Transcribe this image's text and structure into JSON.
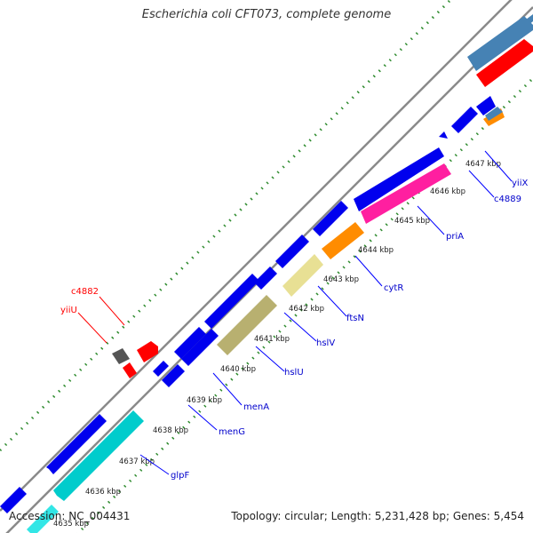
{
  "title": "Escherichia coli CFT073, complete genome",
  "footer": {
    "accession_label": "Accession:",
    "accession": "NC_004431",
    "topology_label": "Topology:",
    "topology": "circular",
    "length_label": "Length:",
    "length": "5,231,428 bp",
    "genes_label": "Genes:",
    "genes": "5,454"
  },
  "colors": {
    "backbone": "#8a8a8a",
    "tick": "#2e8b2e",
    "label_line_forward": "#ff0000",
    "label_line_reverse": "#0000ff"
  },
  "kbp_labels": [
    "4635 kbp",
    "4636 kbp",
    "4637 kbp",
    "4638 kbp",
    "4639 kbp",
    "4640 kbp",
    "4641 kbp",
    "4642 kbp",
    "4643 kbp",
    "4644 kbp",
    "4645 kbp",
    "4646 kbp",
    "4647 kbp"
  ],
  "gene_labels": [
    {
      "name": "c4882",
      "color": "#ff0000"
    },
    {
      "name": "yiiU",
      "color": "#ff0000"
    },
    {
      "name": "glpF",
      "color": "#0000cc"
    },
    {
      "name": "menG",
      "color": "#0000cc"
    },
    {
      "name": "menA",
      "color": "#0000cc"
    },
    {
      "name": "hslU",
      "color": "#0000cc"
    },
    {
      "name": "hslV",
      "color": "#0000cc"
    },
    {
      "name": "ftsN",
      "color": "#0000cc"
    },
    {
      "name": "cytR",
      "color": "#0000cc"
    },
    {
      "name": "priA",
      "color": "#0000cc"
    },
    {
      "name": "c4889",
      "color": "#0000cc"
    },
    {
      "name": "yiiX",
      "color": "#0000cc"
    }
  ]
}
